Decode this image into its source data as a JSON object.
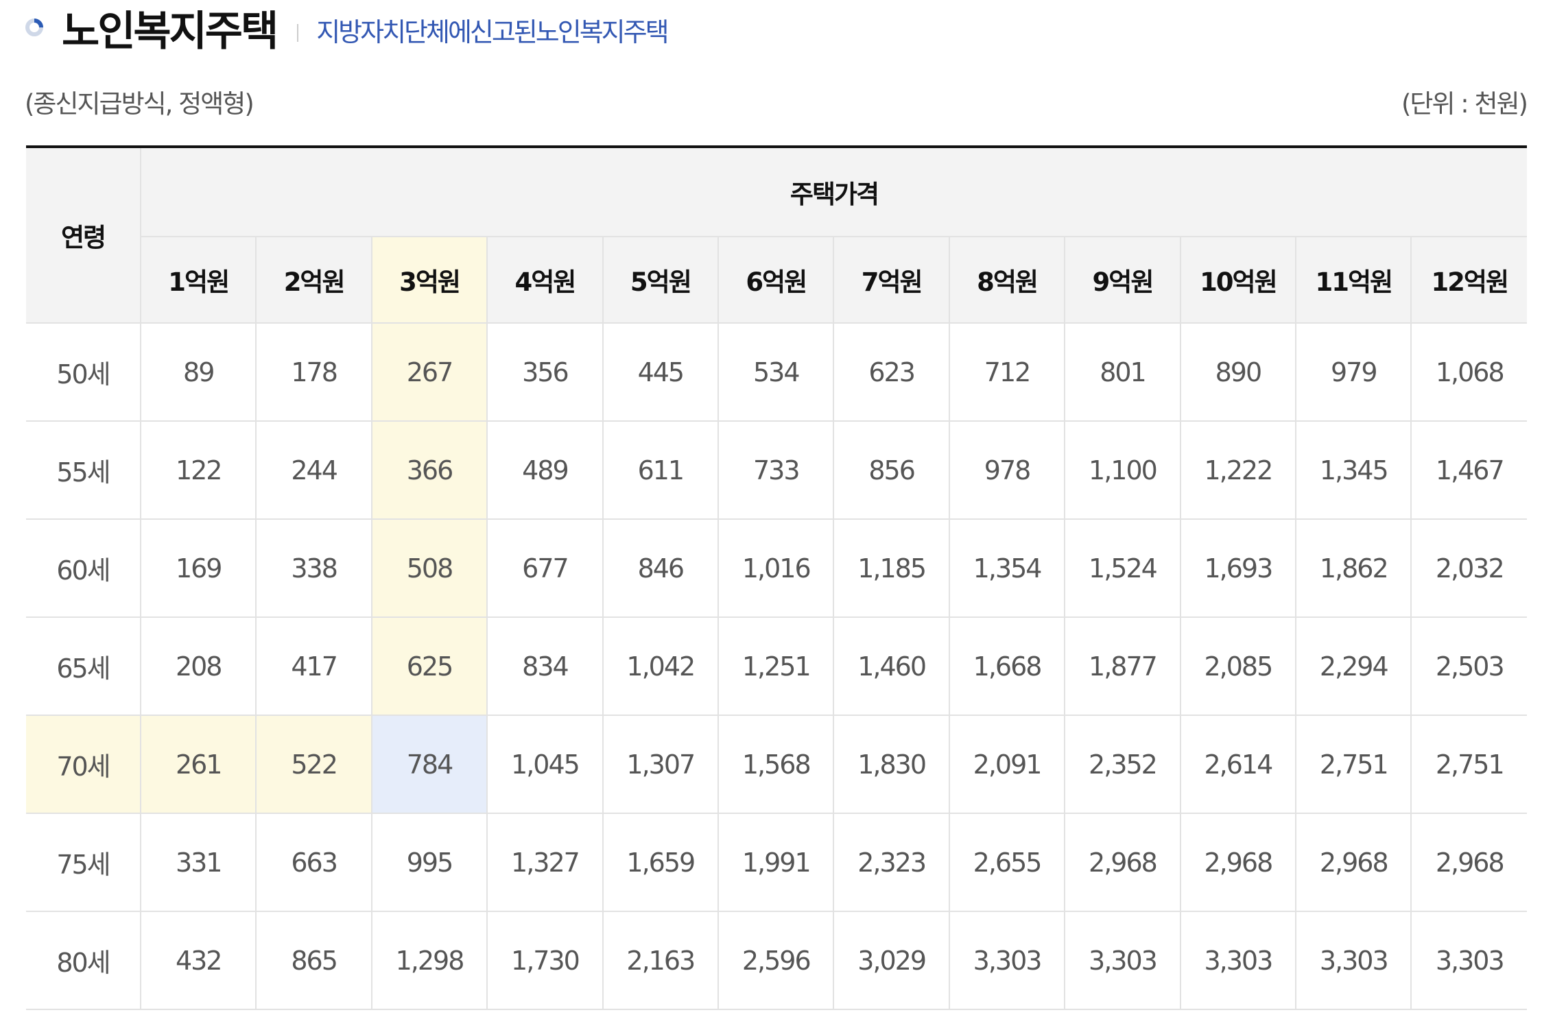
{
  "header": {
    "title": "노인복지주택",
    "subtitle": "지방자치단체에신고된노인복지주택"
  },
  "meta": {
    "method": "(종신지급방식, 정액형)",
    "unit": "(단위 : 천원)"
  },
  "table": {
    "age_header": "연령",
    "group_header": "주택가격",
    "columns": [
      "1억원",
      "2억원",
      "3억원",
      "4억원",
      "5억원",
      "6억원",
      "7억원",
      "8억원",
      "9억원",
      "10억원",
      "11억원",
      "12억원"
    ],
    "rows": [
      {
        "age": "50세",
        "values": [
          "89",
          "178",
          "267",
          "356",
          "445",
          "534",
          "623",
          "712",
          "801",
          "890",
          "979",
          "1,068"
        ]
      },
      {
        "age": "55세",
        "values": [
          "122",
          "244",
          "366",
          "489",
          "611",
          "733",
          "856",
          "978",
          "1,100",
          "1,222",
          "1,345",
          "1,467"
        ]
      },
      {
        "age": "60세",
        "values": [
          "169",
          "338",
          "508",
          "677",
          "846",
          "1,016",
          "1,185",
          "1,354",
          "1,524",
          "1,693",
          "1,862",
          "2,032"
        ]
      },
      {
        "age": "65세",
        "values": [
          "208",
          "417",
          "625",
          "834",
          "1,042",
          "1,251",
          "1,460",
          "1,668",
          "1,877",
          "2,085",
          "2,294",
          "2,503"
        ]
      },
      {
        "age": "70세",
        "values": [
          "261",
          "522",
          "784",
          "1,045",
          "1,307",
          "1,568",
          "1,830",
          "2,091",
          "2,352",
          "2,614",
          "2,751",
          "2,751"
        ]
      },
      {
        "age": "75세",
        "values": [
          "331",
          "663",
          "995",
          "1,327",
          "1,659",
          "1,991",
          "2,323",
          "2,655",
          "2,968",
          "2,968",
          "2,968",
          "2,968"
        ]
      },
      {
        "age": "80세",
        "values": [
          "432",
          "865",
          "1,298",
          "1,730",
          "2,163",
          "2,596",
          "3,029",
          "3,303",
          "3,303",
          "3,303",
          "3,303",
          "3,303"
        ]
      }
    ]
  },
  "highlight": {
    "column": "3억원",
    "row": "70세",
    "cell_color": "#e6edfa",
    "band_color": "#fdf9e1"
  },
  "colors": {
    "title": "#111111",
    "subtitle": "#3358b3",
    "header_bg": "#f3f3f3"
  },
  "icons": {
    "bullet": "circle-bullet-icon"
  }
}
